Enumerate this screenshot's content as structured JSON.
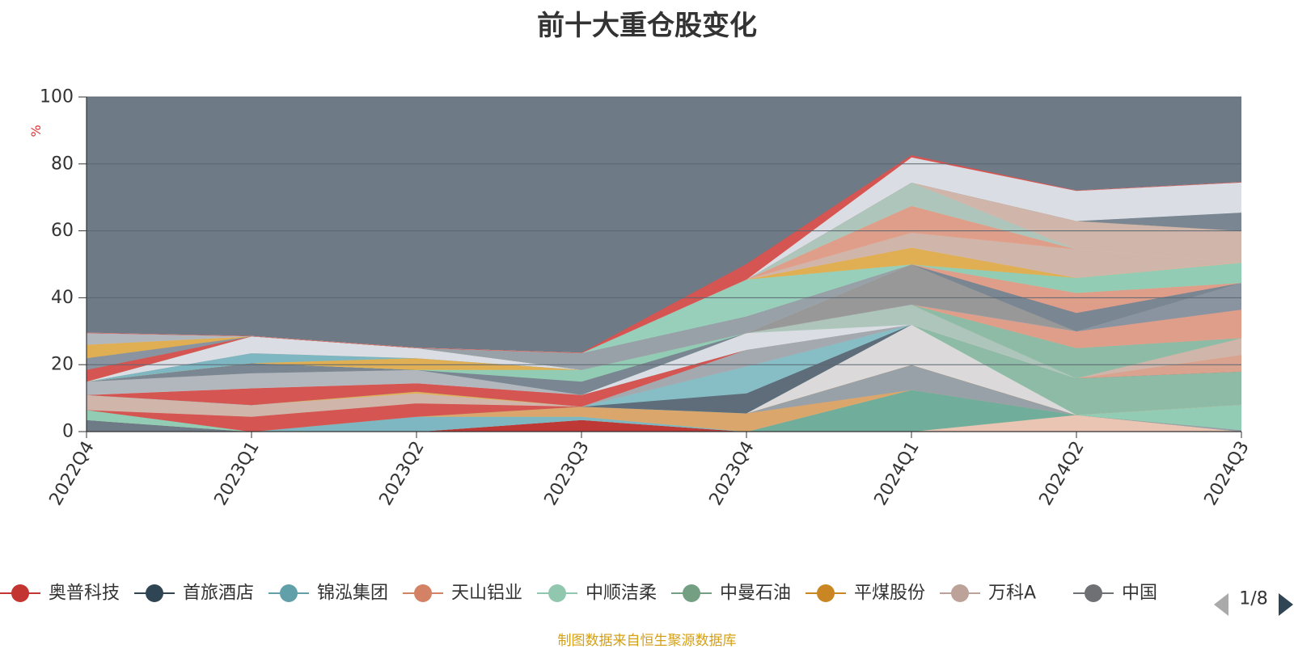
{
  "chart_data": {
    "type": "area",
    "title": "前十大重仓股变化",
    "ylabel": "%",
    "xlabel": "",
    "ylim": [
      0,
      100
    ],
    "yticks": [
      0,
      20,
      40,
      60,
      80,
      100
    ],
    "grid": true,
    "categories": [
      "2022Q4",
      "2023Q1",
      "2023Q2",
      "2023Q3",
      "2023Q4",
      "2024Q1",
      "2024Q2",
      "2024Q3"
    ],
    "background_color": "#6e7b87",
    "series": [
      {
        "color": "#c23531",
        "values": [
          0,
          0,
          0,
          3.5,
          0,
          0,
          0,
          0
        ]
      },
      {
        "color": "#6e7b87",
        "values": [
          3.5,
          0,
          0,
          0,
          0,
          0,
          0,
          0
        ]
      },
      {
        "color": "#f0c9b5",
        "values": [
          0,
          0,
          0,
          0,
          0,
          0,
          5,
          0
        ]
      },
      {
        "color": "#71b09c",
        "values": [
          0,
          0,
          0,
          0,
          0,
          12.5,
          0,
          0
        ]
      },
      {
        "color": "#7eb9c4",
        "values": [
          0,
          0,
          4.5,
          1,
          0,
          0,
          0,
          0
        ]
      },
      {
        "color": "#e0a96a",
        "values": [
          0,
          0,
          0,
          3,
          5.5,
          0,
          0,
          0
        ]
      },
      {
        "color": "#9aa2aa",
        "values": [
          0,
          0,
          0,
          0,
          0,
          7.5,
          0,
          0.5
        ]
      },
      {
        "color": "#93d1b6",
        "values": [
          3,
          0,
          0,
          0,
          0,
          0,
          0,
          7.5
        ]
      },
      {
        "color": "#d9534f",
        "values": [
          0,
          4.5,
          4,
          0,
          0,
          0,
          0,
          0
        ]
      },
      {
        "color": "#d4b8ac",
        "values": [
          4.5,
          3.5,
          3,
          0,
          0,
          0,
          0,
          0
        ]
      },
      {
        "color": "#e6b150",
        "values": [
          0,
          0,
          0.5,
          0,
          0,
          0,
          0,
          0
        ]
      },
      {
        "color": "#e0dede",
        "values": [
          0,
          0,
          0,
          0,
          0,
          12,
          0,
          0
        ]
      },
      {
        "color": "#8fbfa7",
        "values": [
          0,
          0,
          0,
          0,
          0,
          0,
          11,
          10
        ]
      },
      {
        "color": "#5e6d7a",
        "values": [
          0,
          0,
          0,
          0,
          6,
          0,
          0,
          0
        ]
      },
      {
        "color": "#88c2c9",
        "values": [
          0,
          0,
          0,
          0,
          8,
          0,
          0,
          0
        ]
      },
      {
        "color": "#a6acb2",
        "values": [
          0,
          0,
          0,
          0,
          5,
          0,
          0,
          0
        ]
      },
      {
        "color": "#d9534f",
        "values": [
          0,
          5,
          2.5,
          3.5,
          0,
          0,
          0,
          0
        ]
      },
      {
        "color": "#dfa58f",
        "values": [
          0,
          0,
          0,
          0,
          0,
          0,
          0,
          5
        ]
      },
      {
        "color": "#b5bbc1",
        "values": [
          4,
          4.5,
          4,
          0,
          0,
          0,
          0,
          0
        ]
      },
      {
        "color": "#d4b8ac",
        "values": [
          0,
          0,
          0,
          0,
          0,
          0,
          0,
          5
        ]
      },
      {
        "color": "#7a8792",
        "values": [
          0,
          3,
          0,
          0,
          0,
          0,
          0,
          0
        ]
      },
      {
        "color": "#dfe3e8",
        "values": [
          0,
          0,
          0,
          0,
          5,
          0,
          0,
          0
        ]
      },
      {
        "color": "#b0c9bd",
        "values": [
          0,
          0,
          0,
          0,
          0,
          6,
          0,
          0
        ]
      },
      {
        "color": "#7a8792",
        "values": [
          0,
          0,
          0,
          4,
          0,
          0,
          0,
          0
        ]
      },
      {
        "color": "#93d1b6",
        "values": [
          0,
          0,
          0,
          3.5,
          0,
          0,
          0,
          0
        ]
      },
      {
        "color": "#e6b150",
        "values": [
          0,
          0,
          3.5,
          0,
          0,
          0,
          0,
          0
        ]
      },
      {
        "color": "#7eb9c4",
        "values": [
          0,
          3,
          0,
          0,
          0,
          0,
          0,
          0
        ]
      },
      {
        "color": "#8fbfa7",
        "values": [
          0,
          0,
          0,
          0,
          0,
          0,
          9,
          0
        ]
      },
      {
        "color": "#e5a08a",
        "values": [
          0,
          0,
          0,
          0,
          0,
          0,
          5,
          8.5
        ]
      },
      {
        "color": "#8a96a1",
        "values": [
          0,
          0,
          0,
          0,
          0,
          0,
          0,
          8
        ]
      },
      {
        "color": "#dfe3e8",
        "values": [
          0,
          5,
          3,
          0,
          0,
          0,
          0,
          0
        ]
      },
      {
        "color": "#9a9a9a",
        "values": [
          0,
          0,
          0,
          0,
          0,
          12,
          0,
          0
        ]
      },
      {
        "color": "#7a8792",
        "values": [
          0,
          0,
          0,
          0,
          0,
          0,
          5.5,
          0
        ]
      },
      {
        "color": "#e5a08a",
        "values": [
          0,
          0,
          0,
          0,
          0,
          0,
          6,
          0
        ]
      },
      {
        "color": "#93d1b6",
        "values": [
          0,
          0,
          0,
          0,
          0,
          0,
          4.5,
          6
        ]
      },
      {
        "color": "#9aa2aa",
        "values": [
          0,
          0,
          0,
          5,
          5,
          0,
          0,
          0
        ]
      },
      {
        "color": "#9ad4bd",
        "values": [
          0,
          0,
          0,
          0,
          11,
          0,
          0,
          0
        ]
      },
      {
        "color": "#e6b150",
        "values": [
          0,
          0,
          0,
          0,
          0,
          5,
          0,
          0
        ]
      },
      {
        "color": "#d4b8ac",
        "values": [
          0,
          0,
          0,
          0,
          0,
          4.5,
          8.5,
          0
        ]
      },
      {
        "color": "#e5a08a",
        "values": [
          0,
          0,
          0,
          0,
          0,
          8,
          0,
          0
        ]
      },
      {
        "color": "#b0c9bd",
        "values": [
          0,
          0,
          0,
          0,
          0,
          7,
          0,
          0
        ]
      },
      {
        "color": "#d4b8ac",
        "values": [
          0,
          0,
          0,
          0,
          0,
          0,
          8.5,
          9.5
        ]
      },
      {
        "color": "#d9534f",
        "values": [
          3.5,
          0,
          0,
          0,
          0,
          0,
          0,
          0
        ]
      },
      {
        "color": "#8a96a1",
        "values": [
          3.5,
          0,
          0,
          0,
          0,
          0,
          0,
          0
        ]
      },
      {
        "color": "#e6b150",
        "values": [
          4,
          0,
          0,
          0,
          0,
          0,
          0,
          0
        ]
      },
      {
        "color": "#b5bbc1",
        "values": [
          3.5,
          0,
          0,
          0,
          0,
          0,
          0,
          0
        ]
      },
      {
        "color": "#7a8792",
        "values": [
          0,
          0,
          0,
          0,
          0,
          0,
          0,
          5.5
        ]
      },
      {
        "color": "#dfe3e8",
        "values": [
          0,
          0,
          0,
          0,
          0,
          7.5,
          9,
          9
        ]
      },
      {
        "color": "#d9534f",
        "values": [
          0,
          0,
          0,
          0,
          4.5,
          0.5,
          0,
          0
        ]
      }
    ],
    "legend": {
      "placement": "bottom",
      "items": [
        {
          "name": "奥普科技",
          "color": "#c23531"
        },
        {
          "name": "首旅酒店",
          "color": "#2f4554"
        },
        {
          "name": "锦泓集团",
          "color": "#61a0a8"
        },
        {
          "name": "天山铝业",
          "color": "#d48265"
        },
        {
          "name": "中顺洁柔",
          "color": "#91c7ae"
        },
        {
          "name": "中曼石油",
          "color": "#749f83"
        },
        {
          "name": "平煤股份",
          "color": "#ca8622"
        },
        {
          "name": "万科A",
          "color": "#bda29a"
        },
        {
          "name": "中国",
          "color": "#6e7074"
        }
      ],
      "page": "1/8"
    }
  },
  "footer": {
    "source": "制图数据来自恒生聚源数据库"
  }
}
